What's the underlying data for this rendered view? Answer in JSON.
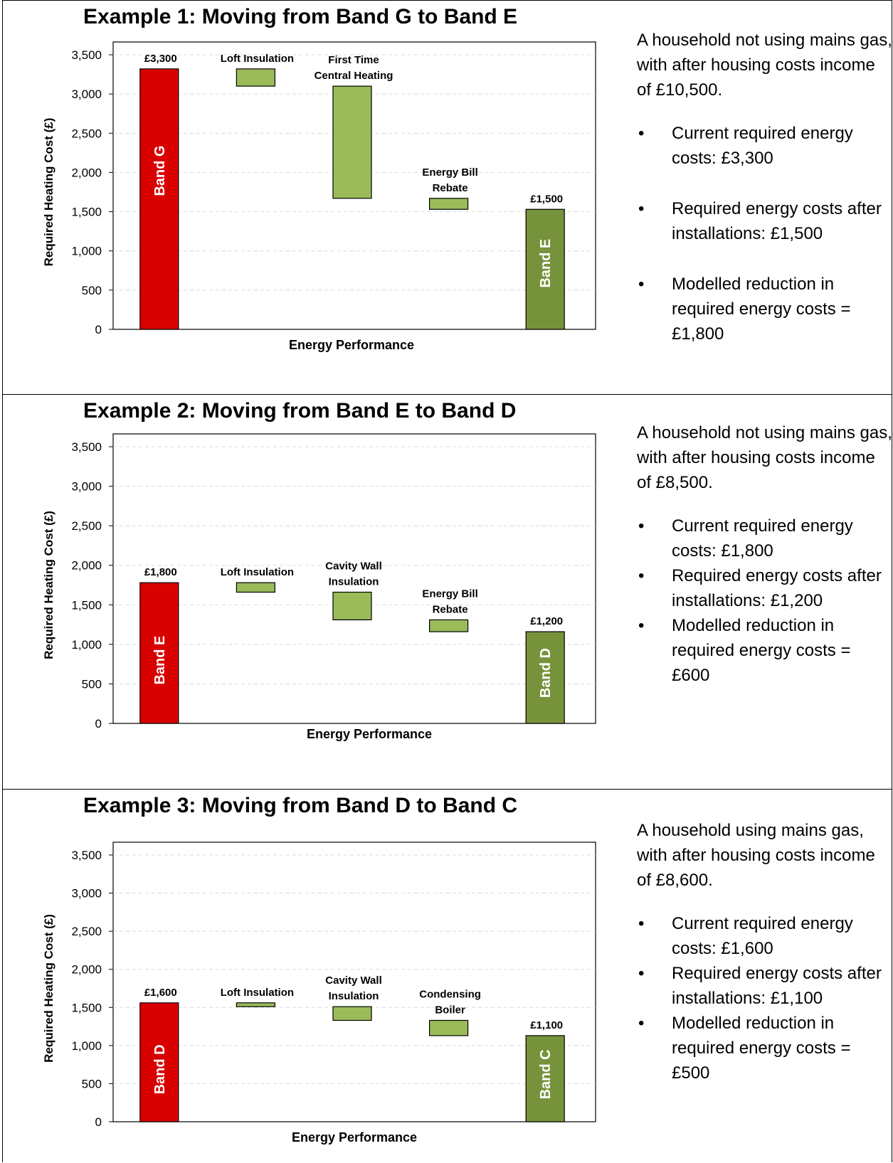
{
  "colors": {
    "start_bar": "#d90000",
    "end_bar": "#76933c",
    "step_bar": "#9bbb59",
    "grid": "#d9d9d9"
  },
  "examples": [
    {
      "title": "Example 1: Moving from Band G to Band E",
      "description": {
        "intro": "A household not using mains gas, with after housing costs income of £10,500.",
        "bullets": [
          "Current required energy costs: £3,300",
          "Required energy costs after installations: £1,500",
          "Modelled reduction in required energy costs = £1,800"
        ]
      }
    },
    {
      "title": "Example 2: Moving from Band E to Band D",
      "description": {
        "intro": "A household not using mains gas, with after housing costs income of £8,500.",
        "bullets": [
          "Current required energy costs: £1,800",
          "Required energy costs after installations: £1,200",
          "Modelled reduction in required energy costs = £600"
        ]
      }
    },
    {
      "title": "Example 3: Moving from Band D to Band C",
      "description": {
        "intro": "A household using mains gas, with after housing costs income of £8,600.",
        "bullets": [
          "Current required energy costs: £1,600",
          "Required energy costs after installations: £1,100",
          "Modelled reduction in required energy costs = £500"
        ]
      }
    }
  ],
  "chart_data": [
    {
      "type": "bar",
      "subtype": "waterfall",
      "xlabel": "Energy Performance",
      "ylabel": "Required Heating Cost (£)",
      "ylim": [
        0,
        3500
      ],
      "yticks": [
        "0",
        "500",
        "1,000",
        "1,500",
        "2,000",
        "2,500",
        "3,000",
        "3,500"
      ],
      "grid": true,
      "bars": [
        {
          "kind": "total",
          "category": "Band G",
          "top_label": "£3,300",
          "low": 0,
          "high": 3320
        },
        {
          "kind": "step",
          "category": "Loft Insulation",
          "top_label": "Loft Insulation",
          "low": 3100,
          "high": 3320
        },
        {
          "kind": "step",
          "category": "First Time Central Heating",
          "top_label": "First Time\nCentral Heating",
          "low": 1670,
          "high": 3100
        },
        {
          "kind": "step",
          "category": "Energy Bill Rebate",
          "top_label": "Energy Bill\nRebate",
          "low": 1530,
          "high": 1670
        },
        {
          "kind": "total",
          "category": "Band E",
          "top_label": "£1,500",
          "low": 0,
          "high": 1530
        }
      ]
    },
    {
      "type": "bar",
      "subtype": "waterfall",
      "xlabel": "Energy Performance",
      "ylabel": "Required Heating Cost (£)",
      "ylim": [
        0,
        3500
      ],
      "yticks": [
        "0",
        "500",
        "1,000",
        "1,500",
        "2,000",
        "2,500",
        "3,000",
        "3,500"
      ],
      "grid": true,
      "bars": [
        {
          "kind": "total",
          "category": "Band E",
          "top_label": "£1,800",
          "low": 0,
          "high": 1780
        },
        {
          "kind": "step",
          "category": "Loft Insulation",
          "top_label": "Loft Insulation",
          "low": 1660,
          "high": 1780
        },
        {
          "kind": "step",
          "category": "Cavity Wall Insulation",
          "top_label": "Cavity Wall\nInsulation",
          "low": 1310,
          "high": 1660
        },
        {
          "kind": "step",
          "category": "Energy Bill Rebate",
          "top_label": "Energy Bill\nRebate",
          "low": 1160,
          "high": 1310
        },
        {
          "kind": "total",
          "category": "Band D",
          "top_label": "£1,200",
          "low": 0,
          "high": 1160
        }
      ]
    },
    {
      "type": "bar",
      "subtype": "waterfall",
      "xlabel": "Energy Performance",
      "ylabel": "Required Heating Cost (£)",
      "ylim": [
        0,
        3500
      ],
      "yticks": [
        "0",
        "500",
        "1,000",
        "1,500",
        "2,000",
        "2,500",
        "3,000",
        "3,500"
      ],
      "grid": true,
      "bars": [
        {
          "kind": "total",
          "category": "Band D",
          "top_label": "£1,600",
          "low": 0,
          "high": 1560
        },
        {
          "kind": "step",
          "category": "Loft Insulation",
          "top_label": "Loft Insulation",
          "low": 1510,
          "high": 1560
        },
        {
          "kind": "step",
          "category": "Cavity Wall Insulation",
          "top_label": "Cavity Wall\nInsulation",
          "low": 1330,
          "high": 1510
        },
        {
          "kind": "step",
          "category": "Condensing Boiler",
          "top_label": "Condensing\nBoiler",
          "low": 1130,
          "high": 1330
        },
        {
          "kind": "total",
          "category": "Band C",
          "top_label": "£1,100",
          "low": 0,
          "high": 1130
        }
      ]
    }
  ]
}
